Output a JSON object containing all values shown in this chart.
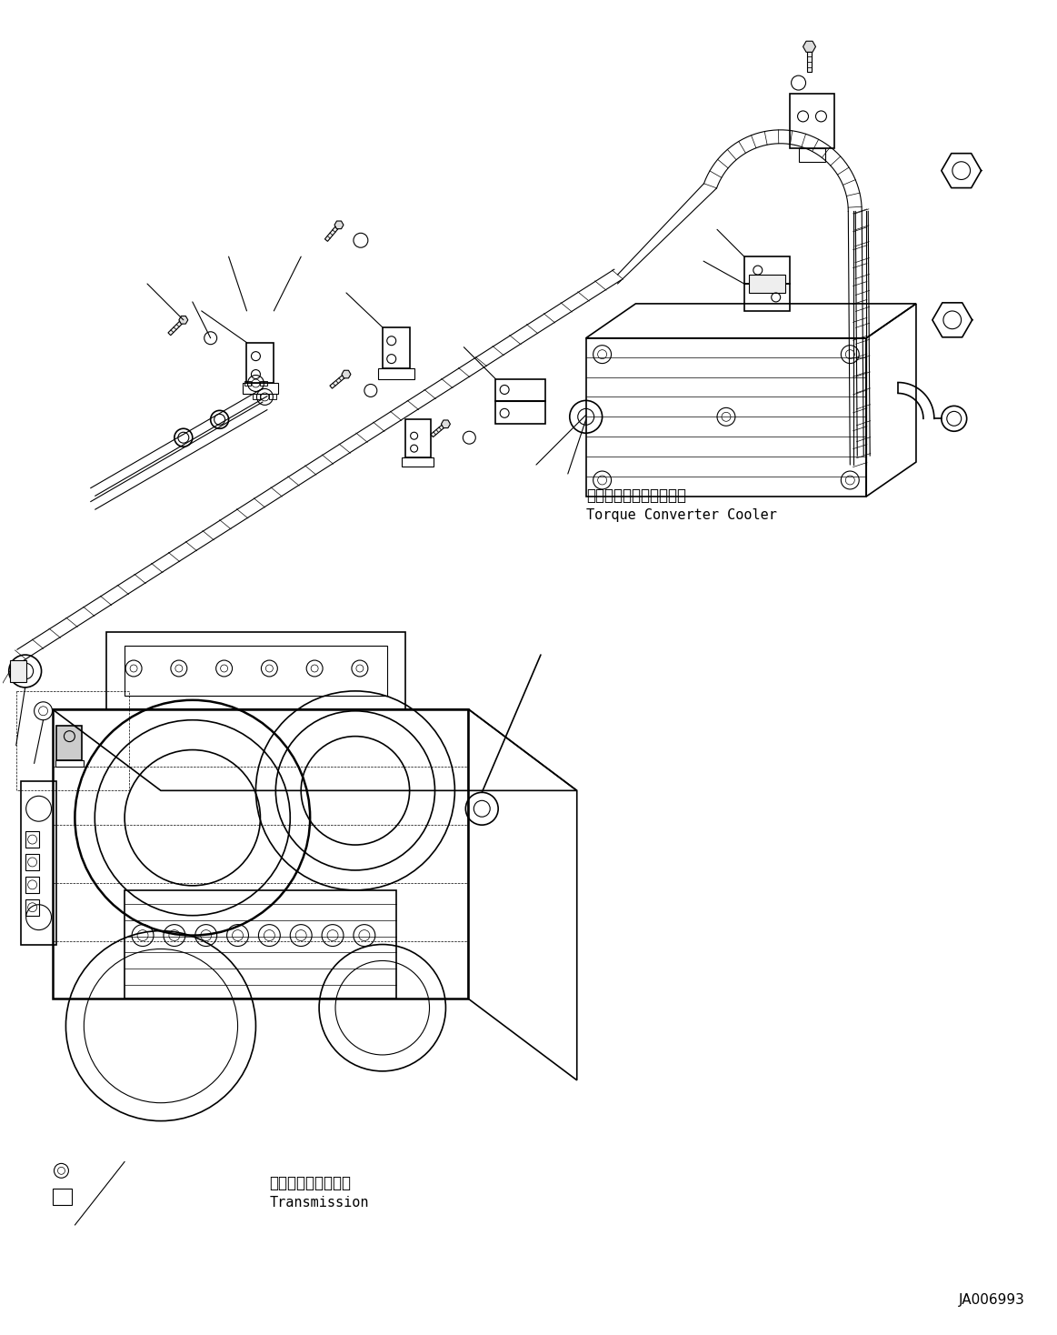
{
  "background_color": "#ffffff",
  "line_color": "#000000",
  "figure_width": 11.63,
  "figure_height": 14.68,
  "dpi": 100,
  "watermark_id": "JA006993",
  "label_torque_converter_jp": "トルクコンバータクーラ",
  "label_torque_converter_en": "Torque Converter Cooler",
  "label_transmission_jp": "トランスミッション",
  "label_transmission_en": "Transmission",
  "label_fontsize_jp": 12,
  "label_fontsize_en": 11,
  "watermark_fontsize": 11
}
